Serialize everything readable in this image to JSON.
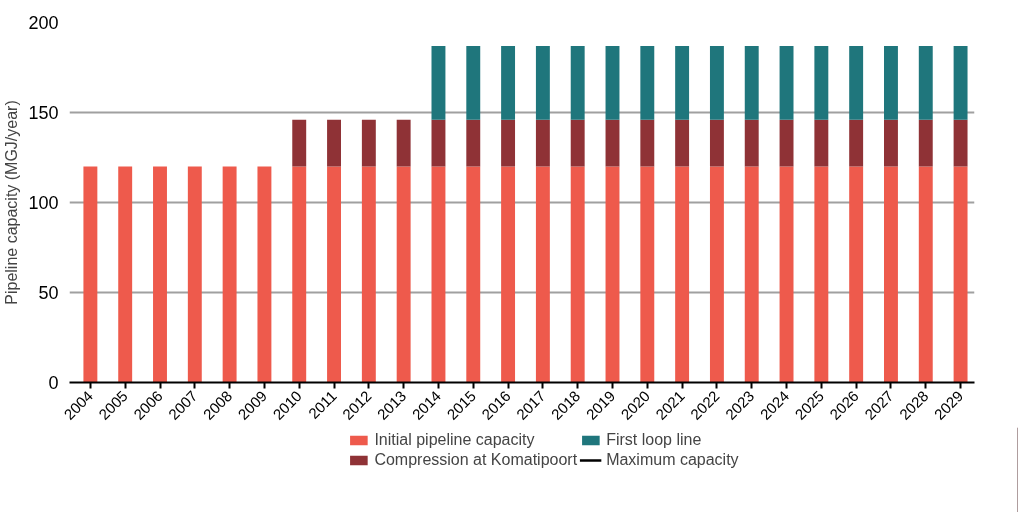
{
  "chart_data": {
    "type": "bar",
    "stacked": true,
    "ylabel": "Pipeline capacity (MGJ/year)",
    "categories": [
      "2004",
      "2005",
      "2006",
      "2007",
      "2008",
      "2009",
      "2010",
      "2011",
      "2012",
      "2013",
      "2014",
      "2015",
      "2016",
      "2017",
      "2018",
      "2019",
      "2020",
      "2021",
      "2022",
      "2023",
      "2024",
      "2025",
      "2026",
      "2027",
      "2028",
      "2029"
    ],
    "series": [
      {
        "name": "Initial pipeline capacity",
        "color": "#ee5a4c",
        "values": [
          120,
          120,
          120,
          120,
          120,
          120,
          120,
          120,
          120,
          120,
          120,
          120,
          120,
          120,
          120,
          120,
          120,
          120,
          120,
          120,
          120,
          120,
          120,
          120,
          120,
          120
        ]
      },
      {
        "name": "Compression at Komatipoort",
        "color": "#8f3236",
        "values": [
          0,
          0,
          0,
          0,
          0,
          0,
          26,
          26,
          26,
          26,
          26,
          26,
          26,
          26,
          26,
          26,
          26,
          26,
          26,
          26,
          26,
          26,
          26,
          26,
          26,
          26
        ]
      },
      {
        "name": "First loop line",
        "color": "#1f767c",
        "values": [
          0,
          0,
          0,
          0,
          0,
          0,
          0,
          0,
          0,
          0,
          41,
          41,
          41,
          41,
          41,
          41,
          41,
          41,
          41,
          41,
          41,
          41,
          41,
          41,
          41,
          41
        ]
      },
      {
        "name": "Maximum capacity",
        "type": "line",
        "color": "#000000",
        "values": [
          null,
          null,
          null,
          null,
          null,
          null,
          null,
          null,
          null,
          null,
          null,
          null,
          null,
          null,
          null,
          null,
          null,
          null,
          null,
          null,
          null,
          null,
          null,
          null,
          null,
          null
        ]
      }
    ],
    "ylim": [
      0,
      200
    ],
    "yticks": [
      0,
      50,
      100,
      150,
      200
    ],
    "grid": "y",
    "legend": "bottom"
  }
}
